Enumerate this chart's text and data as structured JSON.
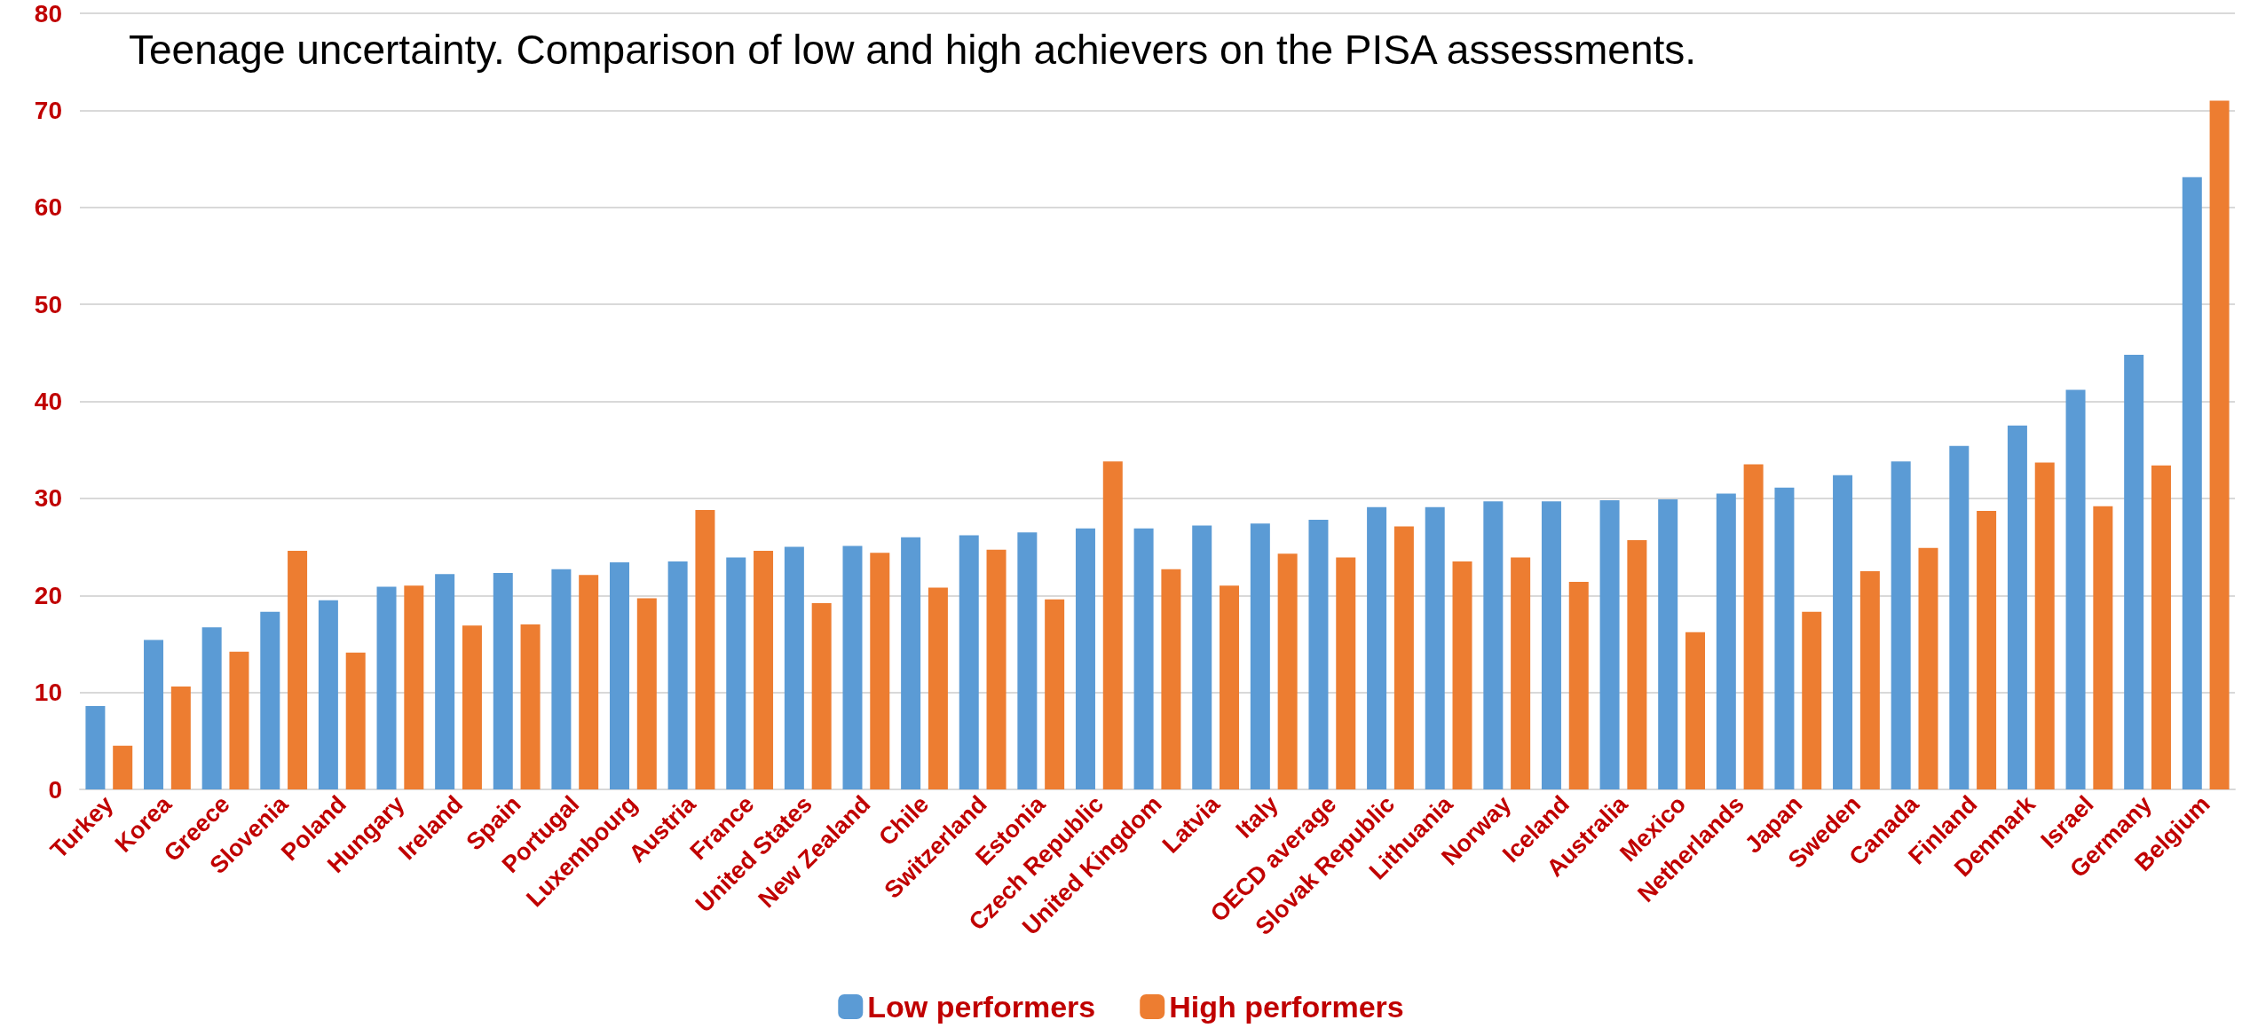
{
  "chart_data": {
    "type": "bar",
    "title": "Teenage uncertainty. Comparison of low and high achievers on the PISA assessments.",
    "categories": [
      "Turkey",
      "Korea",
      "Greece",
      "Slovenia",
      "Poland",
      "Hungary",
      "Ireland",
      "Spain",
      "Portugal",
      "Luxembourg",
      "Austria",
      "France",
      "United States",
      "New Zealand",
      "Chile",
      "Switzerland",
      "Estonia",
      "Czech Republic",
      "United Kingdom",
      "Latvia",
      "Italy",
      "OECD average",
      "Slovak Republic",
      "Lithuania",
      "Norway",
      "Iceland",
      "Australia",
      "Mexico",
      "Netherlands",
      "Japan",
      "Sweden",
      "Canada",
      "Finland",
      "Denmark",
      "Israel",
      "Germany",
      "Belgium"
    ],
    "series": [
      {
        "name": "Low performers",
        "color": "#5b9bd5",
        "values": [
          8.6,
          15.4,
          16.7,
          18.3,
          19.5,
          20.9,
          22.2,
          22.3,
          22.7,
          23.4,
          23.5,
          23.9,
          25.0,
          25.1,
          26.0,
          26.2,
          26.5,
          26.9,
          26.9,
          27.2,
          27.4,
          27.8,
          29.1,
          29.1,
          29.7,
          29.7,
          29.8,
          29.9,
          30.5,
          31.1,
          32.4,
          33.8,
          35.4,
          37.5,
          41.2,
          44.8,
          63.1
        ]
      },
      {
        "name": "High performers",
        "color": "#ed7d31",
        "values": [
          4.5,
          10.6,
          14.2,
          24.6,
          14.1,
          21.0,
          16.9,
          17.0,
          22.1,
          19.7,
          28.8,
          24.6,
          19.2,
          24.4,
          20.8,
          24.7,
          19.6,
          33.8,
          22.7,
          21.0,
          24.3,
          23.9,
          27.1,
          23.5,
          23.9,
          21.4,
          25.7,
          16.2,
          33.5,
          18.3,
          22.5,
          24.9,
          28.7,
          33.7,
          29.2,
          33.4,
          71.0
        ]
      }
    ],
    "ylim": [
      0,
      80
    ],
    "yticks": [
      0,
      10,
      20,
      30,
      40,
      50,
      60,
      70,
      80
    ],
    "grid": "y",
    "legend": "bottom"
  }
}
